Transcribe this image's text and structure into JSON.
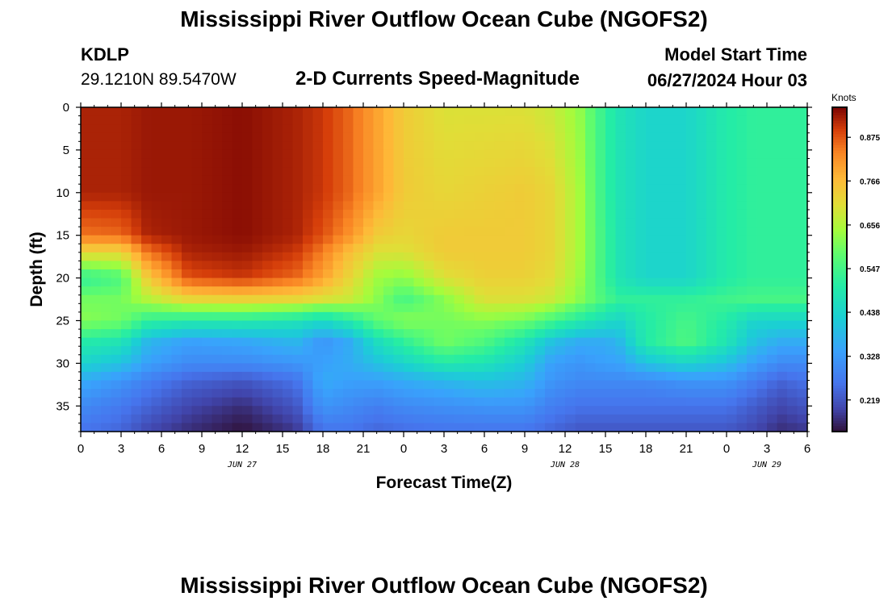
{
  "page_title": "Mississippi River Outflow Ocean Cube (NGOFS2)",
  "station": {
    "id": "KDLP",
    "coords": "29.1210N  89.5470W"
  },
  "subtitle": "2-D Currents Speed-Magnitude",
  "model_start": {
    "label": "Model Start Time",
    "value": "06/27/2024 Hour 03"
  },
  "footer_title": "Mississippi River Outflow Ocean Cube (NGOFS2)",
  "chart_data": {
    "type": "heatmap",
    "xlabel": "Forecast Time(Z)",
    "ylabel": "Depth (ft)",
    "x_range_hours": [
      0,
      54
    ],
    "y_range_ft": [
      0,
      38
    ],
    "x_ticks": [
      "0",
      "3",
      "6",
      "9",
      "12",
      "15",
      "18",
      "21",
      "0",
      "3",
      "6",
      "9",
      "12",
      "15",
      "18",
      "21",
      "0",
      "3",
      "6"
    ],
    "date_labels": [
      {
        "text": "JUN 27",
        "hour": 12
      },
      {
        "text": "JUN 28",
        "hour": 36
      },
      {
        "text": "JUN 29",
        "hour": 51
      }
    ],
    "y_ticks": [
      0,
      5,
      10,
      15,
      20,
      25,
      30,
      35
    ],
    "colorbar": {
      "units": "Knots",
      "ticks": [
        "0.875",
        "0.766",
        "0.656",
        "0.547",
        "0.438",
        "0.328",
        "0.219"
      ],
      "tick_values": [
        0.875,
        0.766,
        0.656,
        0.547,
        0.438,
        0.328,
        0.219
      ],
      "range": [
        0.14,
        0.95
      ]
    },
    "depths_ft": [
      0,
      10,
      15,
      17,
      20,
      22.5,
      25,
      27.5,
      30,
      32,
      35,
      38
    ],
    "hours": [
      0,
      3,
      5,
      8,
      12,
      16,
      18,
      20,
      22,
      24,
      27,
      30,
      33,
      35,
      37,
      39,
      40,
      42,
      45,
      48,
      50,
      52,
      54
    ],
    "speed_knots": [
      [
        0.92,
        0.92,
        0.93,
        0.93,
        0.94,
        0.92,
        0.9,
        0.86,
        0.8,
        0.74,
        0.7,
        0.7,
        0.7,
        0.68,
        0.63,
        0.52,
        0.48,
        0.44,
        0.44,
        0.5,
        0.52,
        0.52,
        0.52
      ],
      [
        0.92,
        0.92,
        0.93,
        0.93,
        0.94,
        0.92,
        0.9,
        0.86,
        0.8,
        0.74,
        0.72,
        0.73,
        0.74,
        0.72,
        0.65,
        0.52,
        0.48,
        0.44,
        0.44,
        0.5,
        0.52,
        0.52,
        0.52
      ],
      [
        0.85,
        0.86,
        0.92,
        0.93,
        0.94,
        0.92,
        0.88,
        0.82,
        0.74,
        0.72,
        0.74,
        0.74,
        0.74,
        0.72,
        0.65,
        0.53,
        0.48,
        0.44,
        0.44,
        0.5,
        0.52,
        0.52,
        0.52
      ],
      [
        0.72,
        0.72,
        0.85,
        0.92,
        0.93,
        0.9,
        0.84,
        0.76,
        0.7,
        0.7,
        0.74,
        0.74,
        0.74,
        0.72,
        0.65,
        0.53,
        0.48,
        0.44,
        0.44,
        0.5,
        0.52,
        0.52,
        0.52
      ],
      [
        0.52,
        0.56,
        0.74,
        0.88,
        0.9,
        0.86,
        0.8,
        0.72,
        0.64,
        0.62,
        0.7,
        0.73,
        0.73,
        0.71,
        0.64,
        0.53,
        0.48,
        0.44,
        0.44,
        0.5,
        0.52,
        0.52,
        0.52
      ],
      [
        0.6,
        0.6,
        0.66,
        0.72,
        0.73,
        0.72,
        0.7,
        0.68,
        0.62,
        0.55,
        0.62,
        0.7,
        0.7,
        0.68,
        0.62,
        0.55,
        0.52,
        0.52,
        0.52,
        0.54,
        0.55,
        0.55,
        0.55
      ],
      [
        0.62,
        0.6,
        0.52,
        0.5,
        0.5,
        0.48,
        0.45,
        0.5,
        0.58,
        0.62,
        0.6,
        0.62,
        0.6,
        0.55,
        0.5,
        0.46,
        0.44,
        0.5,
        0.55,
        0.5,
        0.44,
        0.44,
        0.44
      ],
      [
        0.5,
        0.48,
        0.38,
        0.34,
        0.35,
        0.38,
        0.32,
        0.36,
        0.46,
        0.52,
        0.6,
        0.56,
        0.48,
        0.4,
        0.36,
        0.36,
        0.38,
        0.5,
        0.56,
        0.48,
        0.4,
        0.36,
        0.36
      ],
      [
        0.44,
        0.4,
        0.34,
        0.3,
        0.3,
        0.32,
        0.34,
        0.36,
        0.4,
        0.44,
        0.5,
        0.48,
        0.42,
        0.34,
        0.32,
        0.34,
        0.34,
        0.4,
        0.44,
        0.4,
        0.34,
        0.3,
        0.3
      ],
      [
        0.36,
        0.32,
        0.28,
        0.24,
        0.22,
        0.26,
        0.36,
        0.34,
        0.34,
        0.36,
        0.38,
        0.4,
        0.38,
        0.32,
        0.3,
        0.3,
        0.3,
        0.3,
        0.32,
        0.32,
        0.28,
        0.24,
        0.26
      ],
      [
        0.3,
        0.27,
        0.24,
        0.2,
        0.17,
        0.22,
        0.32,
        0.3,
        0.28,
        0.3,
        0.31,
        0.32,
        0.32,
        0.28,
        0.26,
        0.26,
        0.26,
        0.26,
        0.26,
        0.26,
        0.23,
        0.2,
        0.22
      ],
      [
        0.26,
        0.24,
        0.2,
        0.17,
        0.14,
        0.18,
        0.26,
        0.26,
        0.24,
        0.25,
        0.26,
        0.26,
        0.26,
        0.24,
        0.22,
        0.22,
        0.22,
        0.22,
        0.22,
        0.22,
        0.2,
        0.17,
        0.18
      ]
    ]
  }
}
